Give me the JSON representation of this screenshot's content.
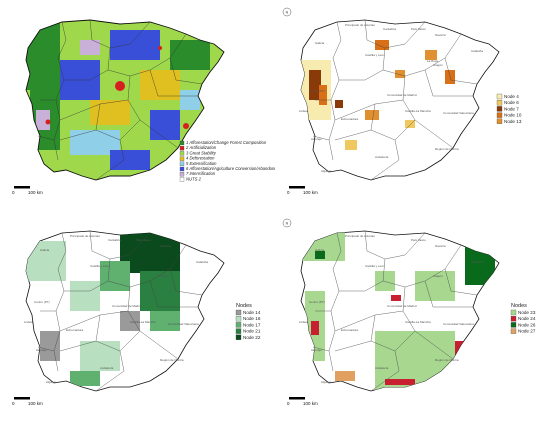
{
  "panels": [
    {
      "id": "p1",
      "legend": {
        "title": "",
        "items": [
          {
            "label": "1 Afforestation/Change Forest Composition",
            "color": "#2a8c2a"
          },
          {
            "label": "2 Artificialization",
            "color": "#d62020"
          },
          {
            "label": "3 Great Stability",
            "color": "#9fd84a"
          },
          {
            "label": "4 Deforestation",
            "color": "#e0c020"
          },
          {
            "label": "5 Extensification",
            "color": "#8fd0e8"
          },
          {
            "label": "6 Afforestation/Agriculture Conversion/Abandonment",
            "color": "#3a4fd8"
          },
          {
            "label": "7 Intensification",
            "color": "#c8b0d8"
          },
          {
            "label": "NUTS 2",
            "color": "#ffffff"
          }
        ]
      },
      "scale": {
        "zero": "0",
        "distance": "100 km"
      }
    },
    {
      "id": "p2",
      "legend": {
        "title": "",
        "items": [
          {
            "label": "Node 4",
            "color": "#f7ebb0"
          },
          {
            "label": "Node 6",
            "color": "#f0c860"
          },
          {
            "label": "Node 7",
            "color": "#8a3a08"
          },
          {
            "label": "Node 10",
            "color": "#d87018"
          },
          {
            "label": "Node 13",
            "color": "#e09030"
          }
        ]
      },
      "scale": {
        "zero": "0",
        "distance": "100 km"
      }
    },
    {
      "id": "p3",
      "legend": {
        "title": "Nodes",
        "items": [
          {
            "label": "Node 14",
            "color": "#9a9a9a"
          },
          {
            "label": "Node 16",
            "color": "#b8e0c0"
          },
          {
            "label": "Node 17",
            "color": "#60b070"
          },
          {
            "label": "Node 21",
            "color": "#2a8040"
          },
          {
            "label": "Node 22",
            "color": "#0a4a1c"
          }
        ]
      },
      "scale": {
        "zero": "0",
        "distance": "100 km"
      }
    },
    {
      "id": "p4",
      "legend": {
        "title": "Nodes",
        "items": [
          {
            "label": "Node 23",
            "color": "#a8d890"
          },
          {
            "label": "Node 24",
            "color": "#c82030"
          },
          {
            "label": "Node 26",
            "color": "#0a6a1c"
          },
          {
            "label": "Node 27",
            "color": "#e0a060"
          }
        ]
      },
      "scale": {
        "zero": "0",
        "distance": "100 km"
      }
    }
  ],
  "region_labels": {
    "p2": [
      "Principado de Asturias",
      "Galicia",
      "Cantabria",
      "País Vasco",
      "Navarra",
      "Aragón",
      "Cataluña",
      "Castilla y León",
      "La Rioja",
      "Centro (PT)",
      "Lisboa",
      "Alentejo",
      "Algarve",
      "Comunidad de Madrid",
      "Castilla-La Mancha",
      "Extremadura",
      "Comunidad Valenciana",
      "Andalucía",
      "Región de Murcia"
    ],
    "p3": [
      "Galicia",
      "Principado de Asturias",
      "Cantabria",
      "País Vasco",
      "Navarra",
      "Aragón",
      "Cataluña",
      "Castilla y León",
      "Centro (PT)",
      "Lisboa",
      "Alentejo",
      "Algarve",
      "Comunidad de Madrid",
      "Castilla-La Mancha",
      "Extremadura",
      "Comunidad Valenciana",
      "Andalucía",
      "Región de Murcia"
    ],
    "p4": [
      "Galicia",
      "Principado de Asturias",
      "País Vasco",
      "Navarra",
      "Aragón",
      "Cataluña",
      "Castilla y León",
      "Centro (PT)",
      "Lisboa",
      "Alentejo",
      "Algarve",
      "Comunidad de Madrid",
      "Castilla-La Mancha",
      "Extremadura",
      "Comunidad Valenciana",
      "Andalucía",
      "Región de Murcia"
    ]
  }
}
